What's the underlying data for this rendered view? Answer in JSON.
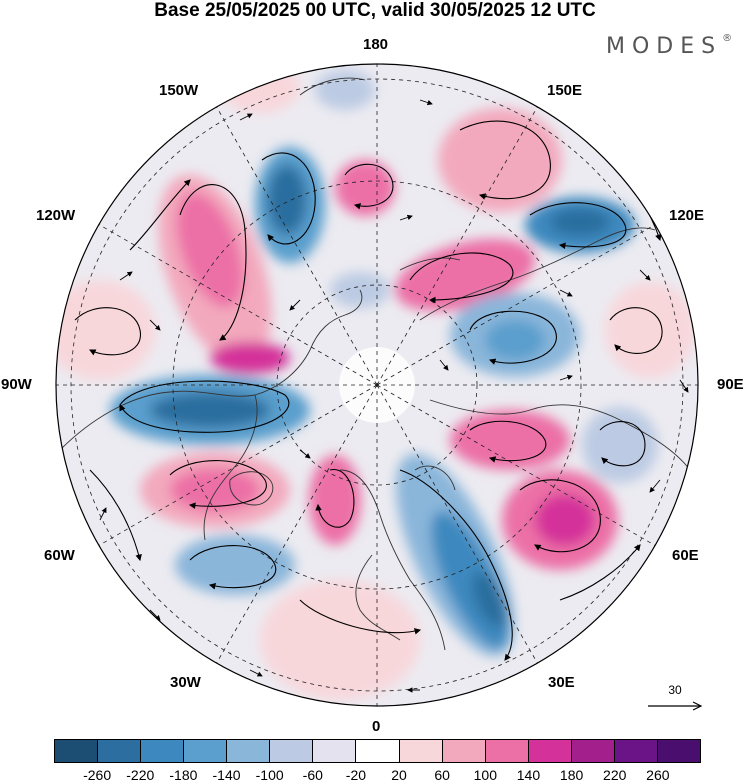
{
  "header": {
    "title": "Base 25/05/2025 00 UTC, valid 30/05/2025 12 UTC",
    "brand": "MODES",
    "brand_mark": "®"
  },
  "map": {
    "projection": "north-polar-stereographic",
    "longitude_labels": {
      "top": "180",
      "bottom": "0",
      "left": "90W",
      "right": "90E",
      "upper_left_1": "150W",
      "upper_left_2": "120W",
      "upper_right_1": "150E",
      "upper_right_2": "120E",
      "lower_left_1": "60W",
      "lower_left_2": "30W",
      "lower_right_1": "60E",
      "lower_right_2": "30E"
    },
    "reference_vector": {
      "label": "30"
    }
  },
  "colorbar": {
    "ticks": [
      "-260",
      "-220",
      "-180",
      "-140",
      "-100",
      "-60",
      "-20",
      "20",
      "60",
      "100",
      "140",
      "180",
      "220",
      "260"
    ],
    "colors": [
      "#1b4e72",
      "#2b6e9f",
      "#3d89bf",
      "#5a9fcd",
      "#8ab6da",
      "#bccbe3",
      "#e4e2ef",
      "#ffffff",
      "#f8d7db",
      "#f3a9bd",
      "#ec6fa6",
      "#d4319a",
      "#a21f8c",
      "#6b1487",
      "#4a0e6f"
    ]
  }
}
